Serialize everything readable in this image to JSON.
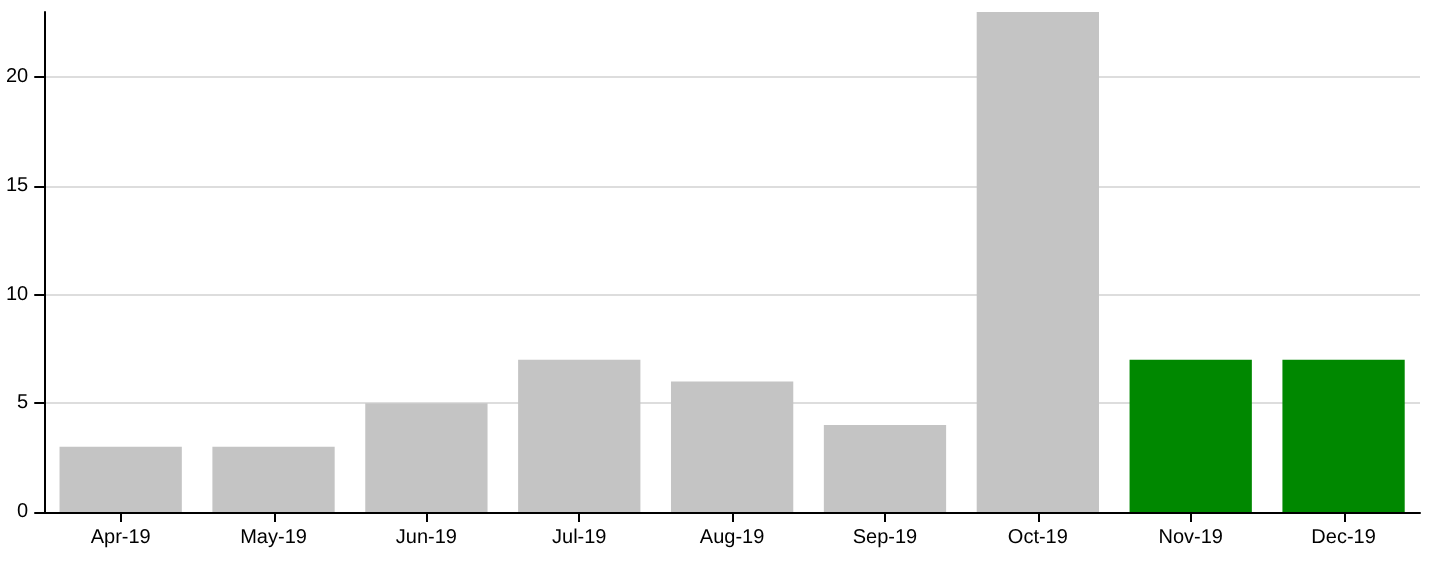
{
  "chart_data": {
    "type": "bar",
    "categories": [
      "Apr-19",
      "May-19",
      "Jun-19",
      "Jul-19",
      "Aug-19",
      "Sep-19",
      "Oct-19",
      "Nov-19",
      "Dec-19"
    ],
    "values": [
      3,
      3,
      5,
      7,
      6,
      4,
      23,
      7,
      7
    ],
    "colors": [
      "#c4c4c4",
      "#c4c4c4",
      "#c4c4c4",
      "#c4c4c4",
      "#c4c4c4",
      "#c4c4c4",
      "#c4c4c4",
      "#008800",
      "#008800"
    ],
    "ylim": [
      0,
      23
    ],
    "yticks": [
      0,
      5,
      10,
      15,
      20
    ],
    "grid": "y"
  }
}
